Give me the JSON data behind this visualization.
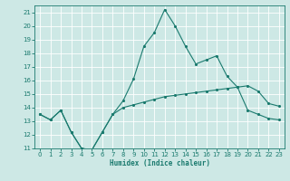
{
  "xlabel": "Humidex (Indice chaleur)",
  "xlim": [
    -0.5,
    23.5
  ],
  "ylim": [
    11,
    21.5
  ],
  "yticks": [
    11,
    12,
    13,
    14,
    15,
    16,
    17,
    18,
    19,
    20,
    21
  ],
  "xticks": [
    0,
    1,
    2,
    3,
    4,
    5,
    6,
    7,
    8,
    9,
    10,
    11,
    12,
    13,
    14,
    15,
    16,
    17,
    18,
    19,
    20,
    21,
    22,
    23
  ],
  "background_color": "#cde8e5",
  "grid_color": "#b0d4d0",
  "line_color": "#1a7a6e",
  "upper_line_x": [
    0,
    1,
    2,
    3,
    4,
    5,
    6,
    7,
    8,
    9,
    10,
    11,
    12,
    13,
    14,
    15,
    16,
    17,
    18,
    19,
    20,
    21,
    22,
    23
  ],
  "upper_line_y": [
    13.5,
    13.1,
    13.8,
    12.2,
    11.0,
    10.9,
    12.2,
    13.5,
    14.5,
    16.1,
    18.5,
    19.5,
    21.2,
    20.0,
    18.5,
    17.2,
    17.5,
    17.8,
    16.3,
    15.5,
    15.6,
    15.2,
    14.3,
    14.1
  ],
  "lower_line_x": [
    0,
    1,
    2,
    3,
    4,
    5,
    6,
    7,
    8,
    9,
    10,
    11,
    12,
    13,
    14,
    15,
    16,
    17,
    18,
    19,
    20,
    21,
    22,
    23
  ],
  "lower_line_y": [
    13.5,
    13.1,
    13.8,
    12.2,
    11.0,
    10.9,
    12.2,
    13.5,
    14.0,
    14.2,
    14.4,
    14.6,
    14.8,
    14.9,
    15.0,
    15.1,
    15.2,
    15.3,
    15.4,
    15.5,
    13.8,
    13.5,
    13.2,
    13.1
  ]
}
